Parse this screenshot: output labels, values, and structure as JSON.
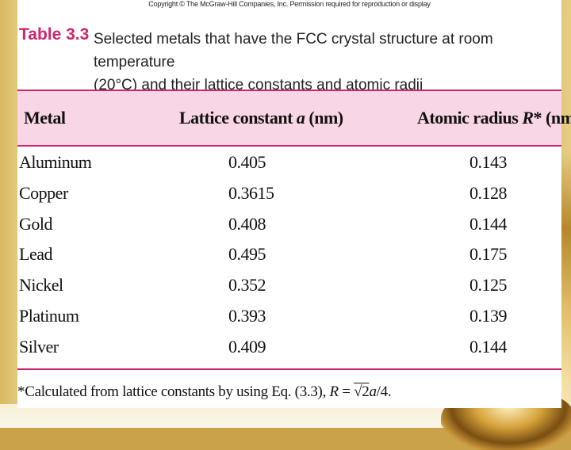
{
  "header": {
    "copyright": "Copyright © The McGraw-Hill Companies, Inc. Permission required for reproduction or display"
  },
  "caption": {
    "number": "Table 3.3",
    "line1": "Selected metals that have the FCC crystal structure at room temperature",
    "line2": "(20°C) and their lattice constants and atomic radii"
  },
  "table": {
    "columns": {
      "metal": "Metal",
      "lattice_prefix": "Lattice constant ",
      "lattice_var": "a",
      "lattice_unit": " (nm)",
      "radius_prefix": "Atomic radius ",
      "radius_var": "R",
      "radius_unit": "* (nm)"
    },
    "rows": [
      {
        "metal": "Aluminum",
        "lattice": "0.405",
        "radius": "0.143"
      },
      {
        "metal": "Copper",
        "lattice": "0.3615",
        "radius": "0.128"
      },
      {
        "metal": "Gold",
        "lattice": "0.408",
        "radius": "0.144"
      },
      {
        "metal": "Lead",
        "lattice": "0.495",
        "radius": "0.175"
      },
      {
        "metal": "Nickel",
        "lattice": "0.352",
        "radius": "0.125"
      },
      {
        "metal": "Platinum",
        "lattice": "0.393",
        "radius": "0.139"
      },
      {
        "metal": "Silver",
        "lattice": "0.409",
        "radius": "0.144"
      }
    ]
  },
  "footnote": {
    "text": "*Calculated from lattice constants by using Eq. (3.3), ",
    "var_r": "R",
    "equals": " = ",
    "root": "√2",
    "var_a": "a",
    "tail": "/4."
  },
  "colors": {
    "accent": "#d1246e",
    "header_band": "#f9d6e5",
    "background_gold": "#caa24a"
  }
}
